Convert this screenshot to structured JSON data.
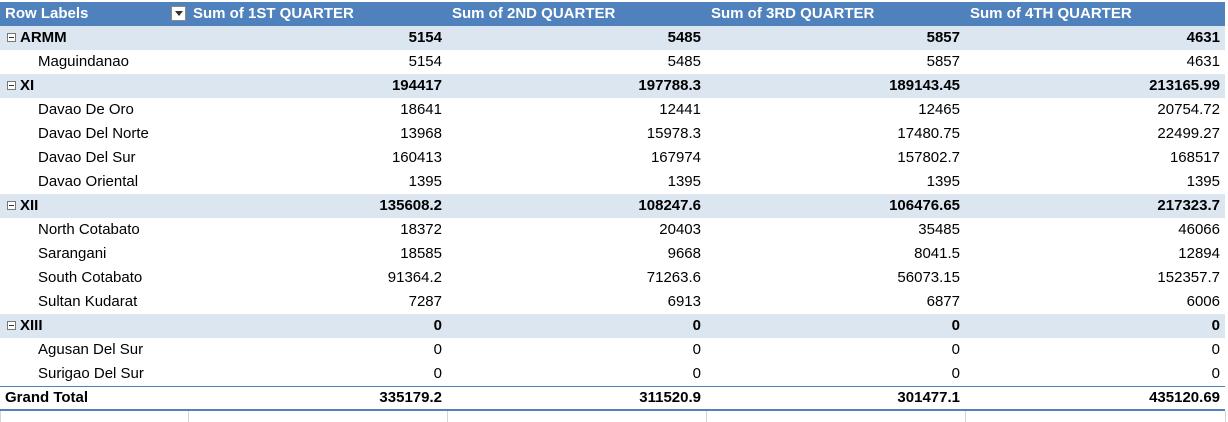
{
  "table": {
    "headers": [
      "Row Labels",
      "Sum of 1ST QUARTER",
      "Sum of 2ND QUARTER",
      "Sum of 3RD QUARTER",
      "Sum of 4TH QUARTER"
    ],
    "rows": [
      {
        "kind": "group",
        "label": "ARMM",
        "values": [
          "5154",
          "5485",
          "5857",
          "4631"
        ]
      },
      {
        "kind": "item",
        "label": "Maguindanao",
        "values": [
          "5154",
          "5485",
          "5857",
          "4631"
        ]
      },
      {
        "kind": "group",
        "label": "XI",
        "values": [
          "194417",
          "197788.3",
          "189143.45",
          "213165.99"
        ]
      },
      {
        "kind": "item",
        "label": "Davao De Oro",
        "values": [
          "18641",
          "12441",
          "12465",
          "20754.72"
        ]
      },
      {
        "kind": "item",
        "label": "Davao Del Norte",
        "values": [
          "13968",
          "15978.3",
          "17480.75",
          "22499.27"
        ]
      },
      {
        "kind": "item",
        "label": "Davao Del Sur",
        "values": [
          "160413",
          "167974",
          "157802.7",
          "168517"
        ]
      },
      {
        "kind": "item",
        "label": "Davao Oriental",
        "values": [
          "1395",
          "1395",
          "1395",
          "1395"
        ]
      },
      {
        "kind": "group",
        "label": "XII",
        "values": [
          "135608.2",
          "108247.6",
          "106476.65",
          "217323.7"
        ]
      },
      {
        "kind": "item",
        "label": "North Cotabato",
        "values": [
          "18372",
          "20403",
          "35485",
          "46066"
        ]
      },
      {
        "kind": "item",
        "label": "Sarangani",
        "values": [
          "18585",
          "9668",
          "8041.5",
          "12894"
        ]
      },
      {
        "kind": "item",
        "label": "South Cotabato",
        "values": [
          "91364.2",
          "71263.6",
          "56073.15",
          "152357.7"
        ]
      },
      {
        "kind": "item",
        "label": "Sultan Kudarat",
        "values": [
          "7287",
          "6913",
          "6877",
          "6006"
        ]
      },
      {
        "kind": "group",
        "label": "XIII",
        "values": [
          "0",
          "0",
          "0",
          "0"
        ]
      },
      {
        "kind": "item",
        "label": "Agusan Del Sur",
        "values": [
          "0",
          "0",
          "0",
          "0"
        ]
      },
      {
        "kind": "item",
        "label": "Surigao Del Sur",
        "values": [
          "0",
          "0",
          "0",
          "0"
        ]
      },
      {
        "kind": "total",
        "label": "Grand Total",
        "values": [
          "335179.2",
          "311520.9",
          "301477.1",
          "435120.69"
        ]
      }
    ]
  }
}
